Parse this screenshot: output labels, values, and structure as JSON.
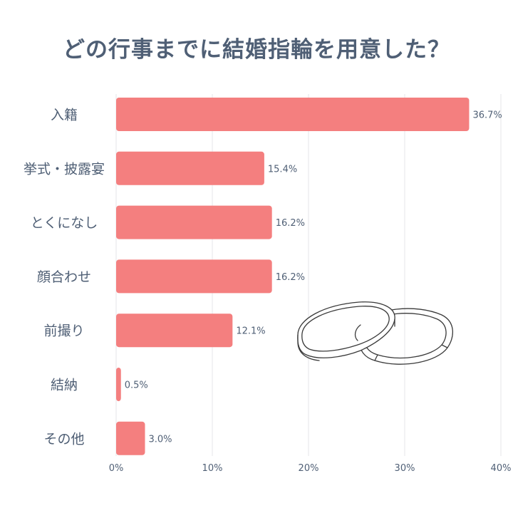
{
  "title": "どの行事までに結婚指輪を用意した？",
  "colors": {
    "bar": "#f47f7f",
    "text": "#4f5f75",
    "grid": "#e4e6ea",
    "ring_stroke": "#3a3a3a"
  },
  "illustration": "wedding-rings-illustration",
  "chart_data": {
    "type": "bar",
    "orientation": "horizontal",
    "title": "どの行事までに結婚指輪を用意した？",
    "categories": [
      "入籍",
      "挙式・披露宴",
      "とくになし",
      "顔合わせ",
      "前撮り",
      "結納",
      "その他"
    ],
    "values": [
      36.7,
      15.4,
      16.2,
      16.2,
      12.1,
      0.5,
      3.0
    ],
    "value_labels": [
      "36.7%",
      "15.4%",
      "16.2%",
      "16.2%",
      "12.1%",
      "0.5%",
      "3.0%"
    ],
    "xlim": [
      0,
      40
    ],
    "xticks": [
      0,
      10,
      20,
      30,
      40
    ],
    "xtick_labels": [
      "0%",
      "10%",
      "20%",
      "30%",
      "40%"
    ],
    "xlabel": "",
    "ylabel": "",
    "grid": true,
    "legend": "none"
  }
}
